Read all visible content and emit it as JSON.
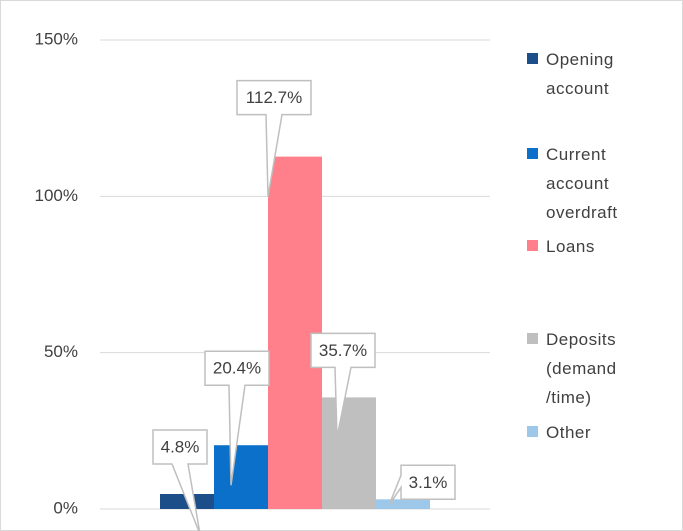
{
  "chart_data": {
    "type": "bar",
    "categories": [
      null
    ],
    "series": [
      {
        "name": "Opening account",
        "color": "#1c4f8a",
        "values": [
          4.8
        ],
        "value_labels": [
          "4.8%"
        ]
      },
      {
        "name": "Current account overdraft",
        "color": "#0b70c9",
        "values": [
          20.4
        ],
        "value_labels": [
          "20.4%"
        ]
      },
      {
        "name": "Loans",
        "color": "#ff7f8b",
        "values": [
          112.7
        ],
        "value_labels": [
          "112.7%"
        ]
      },
      {
        "name": "Deposits (demand /time)",
        "color": "#bfbfbf",
        "values": [
          35.7
        ],
        "value_labels": [
          "35.7%"
        ]
      },
      {
        "name": "Other",
        "color": "#9dc8ea",
        "values": [
          3.1
        ],
        "value_labels": [
          "3.1%"
        ]
      }
    ],
    "ylim": [
      0,
      150
    ],
    "yticks": [
      {
        "value": 0,
        "label": "0%"
      },
      {
        "value": 50,
        "label": "50%"
      },
      {
        "value": 100,
        "label": "100%"
      },
      {
        "value": 150,
        "label": "150%"
      }
    ],
    "grid": true,
    "legend": "right"
  }
}
